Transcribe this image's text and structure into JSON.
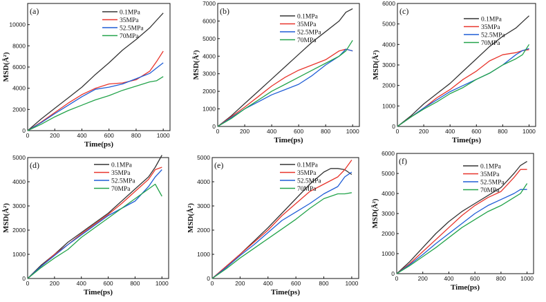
{
  "chart_data": [
    {
      "type": "line",
      "panel_label": "(a)",
      "xlabel": "Time(ps)",
      "ylabel": "MSD(Å²)",
      "xlim": [
        0,
        1050
      ],
      "ylim": [
        0,
        12000
      ],
      "xticks": [
        0,
        200,
        400,
        600,
        800,
        1000
      ],
      "yticks": [
        0,
        2000,
        4000,
        6000,
        8000,
        10000
      ],
      "legend": "top-left",
      "series": [
        {
          "name": "0.1MPa",
          "color": "#333333",
          "x": [
            0,
            100,
            200,
            300,
            400,
            500,
            600,
            700,
            800,
            900,
            950,
            1000
          ],
          "y": [
            0,
            1100,
            2100,
            3100,
            4100,
            5300,
            6400,
            7600,
            8600,
            9700,
            10400,
            11100
          ]
        },
        {
          "name": "35MPa",
          "color": "#e8342b",
          "x": [
            0,
            100,
            200,
            300,
            400,
            500,
            600,
            700,
            800,
            900,
            950,
            1000
          ],
          "y": [
            0,
            800,
            1700,
            2600,
            3400,
            4000,
            4400,
            4500,
            4800,
            5600,
            6500,
            7500
          ]
        },
        {
          "name": "52.5MPa",
          "color": "#1f5dd6",
          "x": [
            0,
            100,
            200,
            300,
            400,
            500,
            600,
            700,
            800,
            900,
            950,
            1000
          ],
          "y": [
            0,
            750,
            1600,
            2400,
            3200,
            3900,
            4100,
            4400,
            4900,
            5400,
            5900,
            6400
          ]
        },
        {
          "name": "70MPa",
          "color": "#22a34a",
          "x": [
            0,
            100,
            200,
            300,
            400,
            500,
            600,
            700,
            800,
            900,
            950,
            1000
          ],
          "y": [
            0,
            600,
            1300,
            1900,
            2400,
            2900,
            3300,
            3800,
            4200,
            4600,
            4700,
            5100
          ]
        }
      ]
    },
    {
      "type": "line",
      "panel_label": "(b)",
      "xlabel": "Time(ps)",
      "ylabel": "MSD(Å²)",
      "xlim": [
        0,
        1050
      ],
      "ylim": [
        0,
        7000
      ],
      "xticks": [
        0,
        200,
        400,
        600,
        800,
        1000
      ],
      "yticks": [
        0,
        1000,
        2000,
        3000,
        4000,
        5000,
        6000,
        7000
      ],
      "legend": "top-right",
      "series": [
        {
          "name": "0.1MPa",
          "color": "#333333",
          "x": [
            0,
            100,
            200,
            300,
            400,
            500,
            600,
            700,
            800,
            900,
            950,
            1000
          ],
          "y": [
            0,
            600,
            1300,
            2000,
            2700,
            3400,
            4100,
            4800,
            5400,
            6000,
            6500,
            6700
          ]
        },
        {
          "name": "35MPa",
          "color": "#e8342b",
          "x": [
            0,
            100,
            200,
            300,
            400,
            500,
            600,
            700,
            800,
            900,
            950,
            1000
          ],
          "y": [
            0,
            550,
            1100,
            1700,
            2300,
            2800,
            3200,
            3500,
            3800,
            4300,
            4400,
            4300
          ]
        },
        {
          "name": "52.5MPa",
          "color": "#1f5dd6",
          "x": [
            0,
            100,
            200,
            300,
            400,
            500,
            600,
            700,
            800,
            900,
            950,
            1000
          ],
          "y": [
            0,
            500,
            1000,
            1400,
            1800,
            2100,
            2400,
            2900,
            3500,
            4000,
            4400,
            4300
          ]
        },
        {
          "name": "70MPa",
          "color": "#22a34a",
          "x": [
            0,
            100,
            200,
            300,
            400,
            500,
            600,
            700,
            800,
            900,
            950,
            1000
          ],
          "y": [
            0,
            450,
            1000,
            1500,
            2000,
            2400,
            2800,
            3200,
            3600,
            4000,
            4300,
            4900
          ]
        }
      ]
    },
    {
      "type": "line",
      "panel_label": "(c)",
      "xlabel": "Time(ps)",
      "ylabel": "MSD(Å²)",
      "xlim": [
        0,
        1050
      ],
      "ylim": [
        0,
        6000
      ],
      "xticks": [
        0,
        200,
        400,
        600,
        800,
        1000
      ],
      "yticks": [
        0,
        1000,
        2000,
        3000,
        4000,
        5000,
        6000
      ],
      "legend": "top-right",
      "series": [
        {
          "name": "0.1MPa",
          "color": "#333333",
          "x": [
            0,
            100,
            200,
            300,
            400,
            500,
            600,
            700,
            800,
            900,
            950,
            1000
          ],
          "y": [
            0,
            500,
            1100,
            1600,
            2100,
            2700,
            3300,
            3900,
            4400,
            4800,
            5100,
            5400
          ]
        },
        {
          "name": "35MPa",
          "color": "#e8342b",
          "x": [
            0,
            100,
            200,
            300,
            400,
            500,
            600,
            700,
            800,
            900,
            950,
            1000
          ],
          "y": [
            0,
            450,
            900,
            1400,
            1800,
            2300,
            2700,
            3200,
            3500,
            3600,
            3700,
            3750
          ]
        },
        {
          "name": "52.5MPa",
          "color": "#1f5dd6",
          "x": [
            0,
            100,
            200,
            300,
            400,
            500,
            600,
            700,
            800,
            900,
            950,
            1000
          ],
          "y": [
            0,
            450,
            900,
            1300,
            1700,
            2000,
            2300,
            2600,
            3000,
            3500,
            3700,
            3800
          ]
        },
        {
          "name": "70MPa",
          "color": "#22a34a",
          "x": [
            0,
            100,
            200,
            300,
            400,
            500,
            600,
            700,
            800,
            900,
            950,
            1000
          ],
          "y": [
            0,
            450,
            850,
            1200,
            1600,
            1900,
            2300,
            2600,
            3000,
            3300,
            3500,
            4000
          ]
        }
      ]
    },
    {
      "type": "line",
      "panel_label": "(d)",
      "xlabel": "Time(ps)",
      "ylabel": "MSD(Å²)",
      "xlim": [
        0,
        1050
      ],
      "ylim": [
        0,
        5000
      ],
      "xticks": [
        0,
        200,
        400,
        600,
        800,
        1000
      ],
      "yticks": [
        0,
        1000,
        2000,
        3000,
        4000,
        5000
      ],
      "legend": "top-right",
      "series": [
        {
          "name": "0.1MPa",
          "color": "#333333",
          "x": [
            0,
            100,
            200,
            300,
            400,
            500,
            600,
            700,
            800,
            900,
            950,
            1000
          ],
          "y": [
            0,
            550,
            1000,
            1500,
            1900,
            2300,
            2700,
            3200,
            3700,
            4200,
            4600,
            5100
          ]
        },
        {
          "name": "35MPa",
          "color": "#e8342b",
          "x": [
            0,
            100,
            200,
            300,
            400,
            500,
            600,
            700,
            800,
            900,
            950,
            1000
          ],
          "y": [
            0,
            500,
            1000,
            1400,
            1850,
            2250,
            2650,
            3100,
            3600,
            4100,
            4500,
            4600
          ]
        },
        {
          "name": "52.5MPa",
          "color": "#1f5dd6",
          "x": [
            0,
            100,
            200,
            300,
            400,
            500,
            600,
            700,
            800,
            900,
            950,
            1000
          ],
          "y": [
            0,
            500,
            950,
            1400,
            1800,
            2200,
            2600,
            2900,
            3200,
            3800,
            4200,
            4500
          ]
        },
        {
          "name": "70MPa",
          "color": "#22a34a",
          "x": [
            0,
            100,
            200,
            300,
            400,
            500,
            600,
            700,
            800,
            900,
            950,
            1000
          ],
          "y": [
            0,
            450,
            850,
            1200,
            1700,
            2100,
            2500,
            2900,
            3300,
            3700,
            3900,
            3400
          ]
        }
      ]
    },
    {
      "type": "line",
      "panel_label": "(e)",
      "xlabel": "Time(ps)",
      "ylabel": "MSD(Å²)",
      "xlim": [
        0,
        1050
      ],
      "ylim": [
        0,
        5000
      ],
      "xticks": [
        0,
        200,
        400,
        600,
        800,
        1000
      ],
      "yticks": [
        0,
        1000,
        2000,
        3000,
        4000,
        5000
      ],
      "legend": "top-right",
      "series": [
        {
          "name": "0.1MPa",
          "color": "#333333",
          "x": [
            0,
            100,
            200,
            300,
            400,
            500,
            600,
            700,
            800,
            850,
            900,
            950,
            1000
          ],
          "y": [
            0,
            500,
            1000,
            1550,
            2100,
            2700,
            3300,
            3900,
            4400,
            4550,
            4550,
            4500,
            4300
          ]
        },
        {
          "name": "35MPa",
          "color": "#e8342b",
          "x": [
            0,
            100,
            200,
            300,
            400,
            500,
            600,
            700,
            800,
            900,
            950,
            1000
          ],
          "y": [
            0,
            500,
            1000,
            1500,
            2000,
            2600,
            3100,
            3600,
            3900,
            4200,
            4500,
            4900
          ]
        },
        {
          "name": "52.5MPa",
          "color": "#1f5dd6",
          "x": [
            0,
            100,
            200,
            300,
            400,
            500,
            600,
            700,
            800,
            900,
            950,
            1000
          ],
          "y": [
            0,
            450,
            950,
            1400,
            1900,
            2400,
            2750,
            3100,
            3500,
            3800,
            4200,
            4400
          ]
        },
        {
          "name": "70MPa",
          "color": "#22a34a",
          "x": [
            0,
            100,
            200,
            300,
            400,
            500,
            600,
            700,
            800,
            900,
            950,
            1000
          ],
          "y": [
            0,
            400,
            850,
            1250,
            1650,
            2050,
            2450,
            2900,
            3300,
            3500,
            3500,
            3550
          ]
        }
      ]
    },
    {
      "type": "line",
      "panel_label": "(f)",
      "xlabel": "Time(ps)",
      "ylabel": "MSD(Å²)",
      "xlim": [
        0,
        1050
      ],
      "ylim": [
        0,
        6000
      ],
      "xticks": [
        0,
        200,
        400,
        600,
        800,
        1000
      ],
      "yticks": [
        0,
        1000,
        2000,
        3000,
        4000,
        5000,
        6000
      ],
      "legend": "top-right",
      "series": [
        {
          "name": "0.1MPa",
          "color": "#333333",
          "x": [
            0,
            100,
            200,
            300,
            400,
            500,
            600,
            700,
            800,
            900,
            950,
            1000
          ],
          "y": [
            0,
            600,
            1300,
            2000,
            2600,
            3100,
            3500,
            3900,
            4300,
            5000,
            5400,
            5600
          ]
        },
        {
          "name": "35MPa",
          "color": "#e8342b",
          "x": [
            0,
            100,
            200,
            300,
            400,
            500,
            600,
            700,
            800,
            900,
            950,
            1000
          ],
          "y": [
            0,
            500,
            1100,
            1700,
            2300,
            2900,
            3400,
            3800,
            4100,
            4800,
            5200,
            5200
          ]
        },
        {
          "name": "52.5MPa",
          "color": "#1f5dd6",
          "x": [
            0,
            100,
            200,
            300,
            400,
            500,
            600,
            700,
            800,
            900,
            950,
            1000
          ],
          "y": [
            0,
            450,
            950,
            1500,
            2000,
            2500,
            3000,
            3400,
            3700,
            4000,
            4200,
            4200
          ]
        },
        {
          "name": "70MPa",
          "color": "#22a34a",
          "x": [
            0,
            100,
            200,
            300,
            400,
            500,
            600,
            700,
            800,
            900,
            950,
            1000
          ],
          "y": [
            0,
            400,
            850,
            1300,
            1800,
            2300,
            2700,
            3100,
            3400,
            3800,
            4000,
            4500
          ]
        }
      ]
    }
  ]
}
